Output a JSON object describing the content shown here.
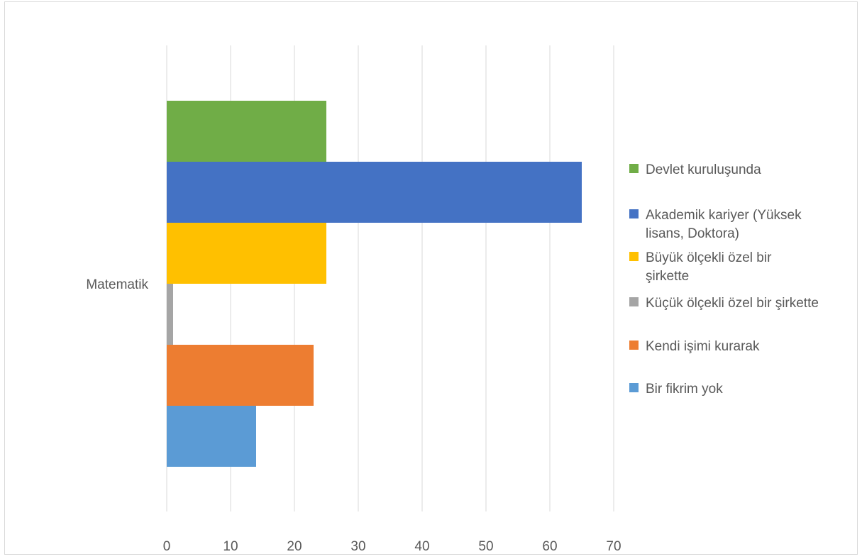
{
  "chart_data": {
    "type": "bar",
    "orientation": "horizontal",
    "categories": [
      "Matematik"
    ],
    "series": [
      {
        "name": "Devlet kuruluşunda",
        "values": [
          25
        ],
        "color": "#70ad47"
      },
      {
        "name": "Akademik kariyer (Yüksek lisans, Doktora)",
        "values": [
          65
        ],
        "color": "#4472c4"
      },
      {
        "name": "Büyük ölçekli özel bir şirkette",
        "values": [
          25
        ],
        "color": "#ffc000"
      },
      {
        "name": "Küçük ölçekli özel bir şirkette",
        "values": [
          1
        ],
        "color": "#a5a5a5"
      },
      {
        "name": "Kendi işimi kurarak",
        "values": [
          23
        ],
        "color": "#ed7d31"
      },
      {
        "name": "Bir fikrim yok",
        "values": [
          14
        ],
        "color": "#5b9bd5"
      }
    ],
    "xlim": [
      0,
      70
    ],
    "xticks": [
      0,
      10,
      20,
      30,
      40,
      50,
      60,
      70
    ],
    "grid": true,
    "legend_position": "right",
    "title": "",
    "xlabel": "",
    "ylabel": ""
  },
  "legend": {
    "items": [
      {
        "lines": [
          "Devlet kuruluşunda"
        ],
        "color": "#70ad47"
      },
      {
        "lines": [
          "Akademik kariyer (Yüksek",
          "lisans, Doktora)"
        ],
        "color": "#4472c4"
      },
      {
        "lines": [
          "Büyük ölçekli özel bir",
          "şirkette"
        ],
        "color": "#ffc000"
      },
      {
        "lines": [
          "Küçük ölçekli özel bir şirkette"
        ],
        "color": "#a5a5a5"
      },
      {
        "lines": [
          "Kendi işimi kurarak"
        ],
        "color": "#ed7d31"
      },
      {
        "lines": [
          "Bir fikrim yok"
        ],
        "color": "#5b9bd5"
      }
    ]
  }
}
